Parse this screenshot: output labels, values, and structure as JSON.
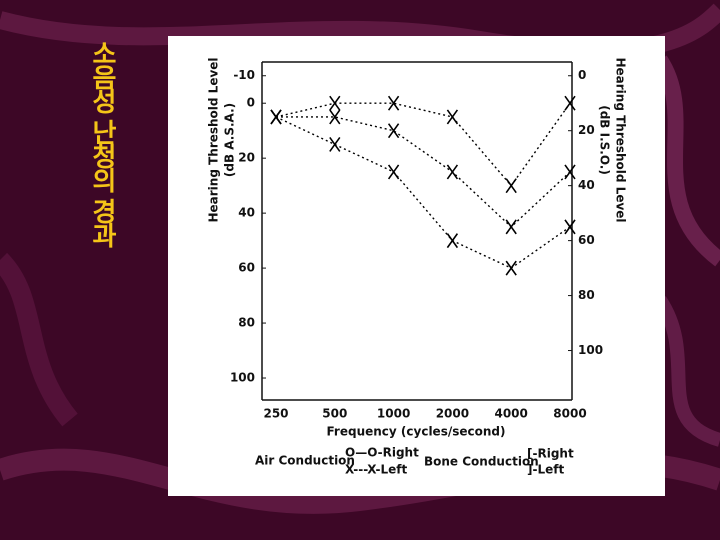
{
  "slide_title": "소음성 난청의 경과",
  "chart_data": {
    "type": "line",
    "ylabel": [
      "Hearing Threshold Level",
      "(dB A.S.A.)"
    ],
    "y2label": [
      "Hearing Threshold Level",
      "(dB I.S.O.)"
    ],
    "xlabel": "Frequency (cycles/second)",
    "categories": [
      "250",
      "500",
      "1000",
      "2000",
      "4000",
      "8000"
    ],
    "ylim": [
      -15,
      108
    ],
    "yticks": [
      -10,
      0,
      20,
      40,
      60,
      80,
      100
    ],
    "y_inverted": true,
    "y2lim": [
      -5,
      118
    ],
    "y2ticks": [
      0,
      20,
      40,
      60,
      80,
      100
    ],
    "grid": false,
    "series": [
      {
        "color": "#000000",
        "values": [
          5,
          0,
          0,
          5,
          30,
          0
        ]
      },
      {
        "color": "#000000",
        "values": [
          5,
          5,
          10,
          25,
          45,
          25
        ]
      },
      {
        "color": "#000000",
        "values": [
          5,
          15,
          25,
          50,
          60,
          45
        ]
      }
    ],
    "legend": {
      "air_conduction": "Air Conduction",
      "air_right": "O—O-Right",
      "air_left": "X---X-Left",
      "bone_conduction": "Bone Conduction",
      "bone_right": "[-Right",
      "bone_left": "]-Left"
    }
  }
}
